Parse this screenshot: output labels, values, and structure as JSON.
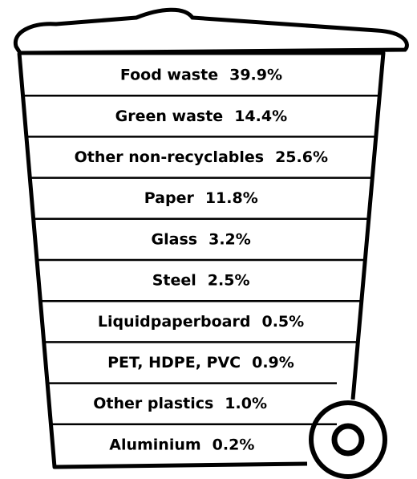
{
  "items": [
    {
      "name": "Food waste",
      "share": "39.9%"
    },
    {
      "name": "Green waste",
      "share": "14.4%"
    },
    {
      "name": "Other non-recyclables",
      "share": "25.6%"
    },
    {
      "name": "Paper",
      "share": "11.8%"
    },
    {
      "name": "Glass",
      "share": "3.2%"
    },
    {
      "name": "Steel",
      "share": "2.5%"
    },
    {
      "name": "Liquidpaperboard",
      "share": "0.5%"
    },
    {
      "name": "PET, HDPE, PVC",
      "share": "0.9%"
    },
    {
      "name": "Other plastics",
      "share": "1.0%"
    },
    {
      "name": "Aluminium",
      "share": "0.2%"
    }
  ]
}
